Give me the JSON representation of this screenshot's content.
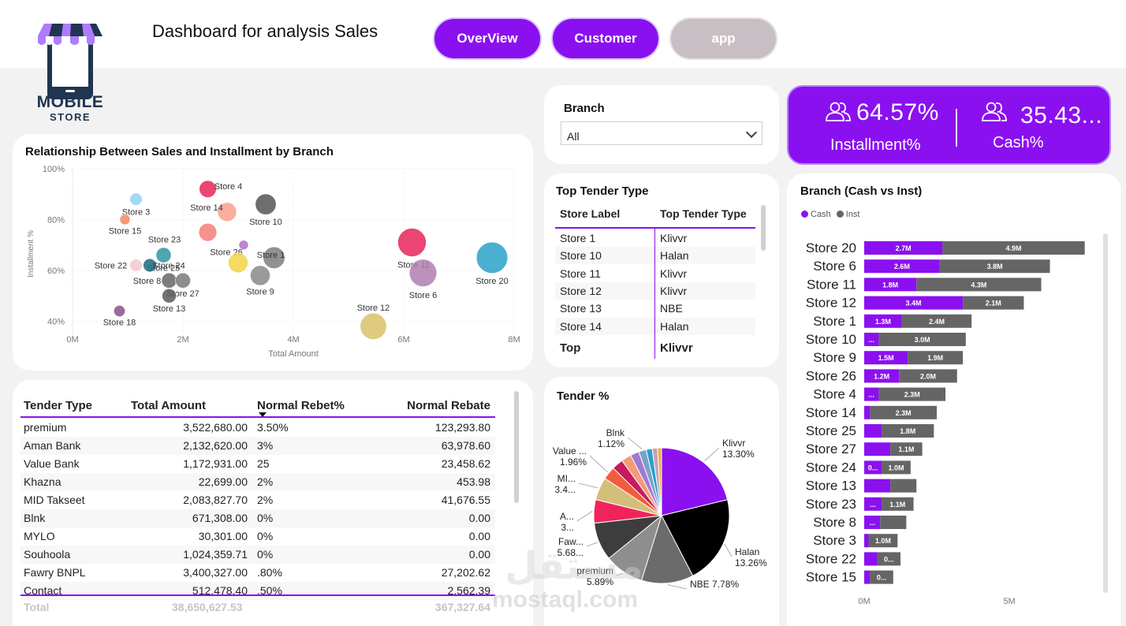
{
  "header": {
    "title": "Dashboard for analysis Sales",
    "logo_line1": "MOBILE",
    "logo_line2": "STORE",
    "nav": [
      "OverView",
      "Customer",
      "app"
    ]
  },
  "branch_slicer": {
    "label": "Branch",
    "value": "All"
  },
  "kpi": {
    "installment_value": "64.57%",
    "installment_label": "Installment%",
    "cash_value": "35.43...",
    "cash_label": "Cash%"
  },
  "top_tender": {
    "title": "Top Tender Type",
    "col1": "Store Label",
    "col2": "Top Tender Type",
    "rows": [
      [
        "Store 1",
        "Klivvr"
      ],
      [
        "Store 10",
        "Halan"
      ],
      [
        "Store 11",
        "Klivvr"
      ],
      [
        "Store 12",
        "Klivvr"
      ],
      [
        "Store 13",
        "NBE"
      ],
      [
        "Store 14",
        "Halan"
      ]
    ],
    "total_label": "Top",
    "total_value": "Klivvr"
  },
  "tender_table": {
    "headers": [
      "Tender Type",
      "Total Amount",
      "Normal Rebet%",
      "Normal Rebate"
    ],
    "rows": [
      [
        "premium",
        "3,522,680.00",
        "3.50%",
        "123,293.80"
      ],
      [
        "Aman Bank",
        "2,132,620.00",
        "3%",
        "63,978.60"
      ],
      [
        "Value Bank",
        "1,172,931.00",
        "25",
        "23,458.62"
      ],
      [
        "Khazna",
        "22,699.00",
        "2%",
        "453.98"
      ],
      [
        "MID Takseet",
        "2,083,827.70",
        "2%",
        "41,676.55"
      ],
      [
        "Blnk",
        "671,308.00",
        "0%",
        "0.00"
      ],
      [
        "MYLO",
        "30,301.00",
        "0%",
        "0.00"
      ],
      [
        "Souhoola",
        "1,024,359.71",
        "0%",
        "0.00"
      ],
      [
        "Fawry BNPL",
        "3,400,327.00",
        ".80%",
        "27,202.62"
      ],
      [
        "Contact",
        "512,478.40",
        ".50%",
        "2,562.39"
      ]
    ],
    "total": [
      "Total",
      "38,650,627.53",
      "",
      "367,327.64"
    ]
  },
  "watermark": {
    "arabic": "مستقل",
    "latin": "mostaql.com"
  },
  "chart_data": [
    {
      "type": "scatter",
      "title": "Relationship Between Sales and Installment by Branch",
      "xlabel": "Total Amount",
      "ylabel": "Installment %",
      "xlim": [
        0,
        8000000
      ],
      "ylim": [
        33,
        100
      ],
      "x_ticks": [
        "0M",
        "2M",
        "4M",
        "6M",
        "8M"
      ],
      "y_ticks": [
        "40%",
        "60%",
        "80%",
        "100%"
      ],
      "points": [
        {
          "label": "Store 3",
          "x": 1150000,
          "y": 88,
          "size": 1.3,
          "color": "#8fd3f4"
        },
        {
          "label": "Store 15",
          "x": 950000,
          "y": 80,
          "size": 1.1,
          "color": "#f58a5c"
        },
        {
          "label": "Store 4",
          "x": 2450000,
          "y": 92,
          "size": 1.8,
          "color": "#e8245b"
        },
        {
          "label": "Store 14",
          "x": 2800000,
          "y": 83,
          "size": 2.0,
          "color": "#f9a08a"
        },
        {
          "label": "Store 10",
          "x": 3500000,
          "y": 86,
          "size": 2.2,
          "color": "#555555"
        },
        {
          "label": "Store 23",
          "x": 2450000,
          "y": 75,
          "size": 1.9,
          "color": "#f47f78"
        },
        {
          "label": "Store 26",
          "x": 3100000,
          "y": 70,
          "size": 1.0,
          "color": "#b06fc9"
        },
        {
          "label": "Store 25",
          "x": 1650000,
          "y": 66,
          "size": 1.6,
          "color": "#2f97a0"
        },
        {
          "label": "Store 22",
          "x": 1150000,
          "y": 62,
          "size": 1.3,
          "color": "#f2c8cc"
        },
        {
          "label": "Store 24",
          "x": 1400000,
          "y": 62,
          "size": 1.4,
          "color": "#1e6b7f"
        },
        {
          "label": "Store 8",
          "x": 1750000,
          "y": 56,
          "size": 1.6,
          "color": "#666666"
        },
        {
          "label": "Store 27",
          "x": 2000000,
          "y": 56,
          "size": 1.6,
          "color": "#7a7a7a"
        },
        {
          "label": "Store 13",
          "x": 1750000,
          "y": 50,
          "size": 1.5,
          "color": "#5a5a5a"
        },
        {
          "label": "Store 18",
          "x": 850000,
          "y": 44,
          "size": 1.2,
          "color": "#8c4f8c"
        },
        {
          "label": "Store 1",
          "x": 3650000,
          "y": 65,
          "size": 2.3,
          "color": "#7e7e7e"
        },
        {
          "label": "Store 9",
          "x": 3400000,
          "y": 58,
          "size": 2.1,
          "color": "#888888"
        },
        {
          "label": "Store 2",
          "x": 3000000,
          "y": 63,
          "size": 2.1,
          "color": "#f5d547"
        },
        {
          "label": "Store 11",
          "x": 6150000,
          "y": 71,
          "size": 3.0,
          "color": "#e8245b"
        },
        {
          "label": "Store 6",
          "x": 6350000,
          "y": 59,
          "size": 2.9,
          "color": "#b07fb0"
        },
        {
          "label": "Store 20",
          "x": 7600000,
          "y": 65,
          "size": 3.3,
          "color": "#2aa1c8"
        },
        {
          "label": "Store 12",
          "x": 5450000,
          "y": 38,
          "size": 2.8,
          "color": "#d8c26a"
        }
      ]
    },
    {
      "type": "pie",
      "title": "Tender %",
      "slices": [
        {
          "name": "Klivvr",
          "value": 13.3,
          "label": "13.30%",
          "color": "#8b10f0",
          "show": true
        },
        {
          "name": "Halan",
          "value": 13.26,
          "label": "13.26%",
          "color": "#000000",
          "show": true
        },
        {
          "name": "NBE",
          "value": 7.78,
          "label": "7.78%",
          "color": "#6b6b6b",
          "show": true
        },
        {
          "name": "premium",
          "value": 5.89,
          "label": "5.89%",
          "color": "#8e8e8e",
          "show": true
        },
        {
          "name": "Faw...",
          "value": 5.68,
          "label": "5.68...",
          "color": "#3d3d3d",
          "show": true
        },
        {
          "name": "A...",
          "value": 3.5,
          "label": "3...",
          "color": "#f0245b",
          "show": true
        },
        {
          "name": "MI...",
          "value": 3.4,
          "label": "3.4...",
          "color": "#d3bf7a",
          "show": true
        },
        {
          "name": "Value ...",
          "value": 1.96,
          "label": "1.96%",
          "color": "#f05d3d",
          "show": true
        },
        {
          "name": "s9",
          "value": 1.7,
          "color": "#c81b5b",
          "show": false
        },
        {
          "name": "s10",
          "value": 1.5,
          "color": "#f39a7a",
          "show": false
        },
        {
          "name": "s11",
          "value": 1.3,
          "color": "#a07ad0",
          "show": false
        },
        {
          "name": "Blnk",
          "value": 1.12,
          "label": "1.12%",
          "color": "#7ba1c8",
          "show": true
        },
        {
          "name": "s13",
          "value": 0.9,
          "color": "#2aa1c8",
          "show": false
        },
        {
          "name": "s14",
          "value": 0.8,
          "color": "#c8a0b8",
          "show": false
        },
        {
          "name": "s15",
          "value": 0.6,
          "color": "#e8b04a",
          "show": false
        }
      ]
    },
    {
      "type": "bar",
      "title": "Branch (Cash vs Inst)",
      "stacked": true,
      "orientation": "horizontal",
      "legend": [
        "Cash",
        "Inst"
      ],
      "series_colors": {
        "Cash": "#8b10f0",
        "Inst": "#656565"
      },
      "x_ticks": [
        "0M",
        "5M"
      ],
      "xlim": [
        0,
        7700000
      ],
      "categories": [
        "Store 20",
        "Store 6",
        "Store 11",
        "Store 12",
        "Store 1",
        "Store 10",
        "Store 9",
        "Store 26",
        "Store 4",
        "Store 14",
        "Store 25",
        "Store 27",
        "Store 24",
        "Store 13",
        "Store 23",
        "Store 8",
        "Store 3",
        "Store 22",
        "Store 15"
      ],
      "series": [
        {
          "name": "Cash",
          "values": [
            2700000,
            2600000,
            1800000,
            3400000,
            1300000,
            500000,
            1500000,
            1200000,
            500000,
            200000,
            600000,
            900000,
            600000,
            900000,
            600000,
            550000,
            150000,
            450000,
            200000
          ],
          "labels": [
            "2.7M",
            "2.6M",
            "1.8M",
            "3.4M",
            "1.3M",
            "...",
            "1.5M",
            "1.2M",
            "...",
            "",
            "",
            "",
            "0...",
            "",
            "...",
            "...",
            "",
            "",
            ""
          ]
        },
        {
          "name": "Inst",
          "values": [
            4900000,
            3800000,
            4300000,
            2100000,
            2400000,
            3000000,
            1900000,
            2000000,
            2300000,
            2300000,
            1800000,
            1100000,
            1000000,
            900000,
            1100000,
            900000,
            1000000,
            800000,
            800000
          ],
          "labels": [
            "4.9M",
            "3.8M",
            "4.3M",
            "2.1M",
            "2.4M",
            "3.0M",
            "1.9M",
            "2.0M",
            "2.3M",
            "2.3M",
            "1.8M",
            "1.1M",
            "1.0M",
            "",
            "1.1M",
            "",
            "1.0M",
            "0...",
            "0..."
          ]
        }
      ]
    }
  ]
}
